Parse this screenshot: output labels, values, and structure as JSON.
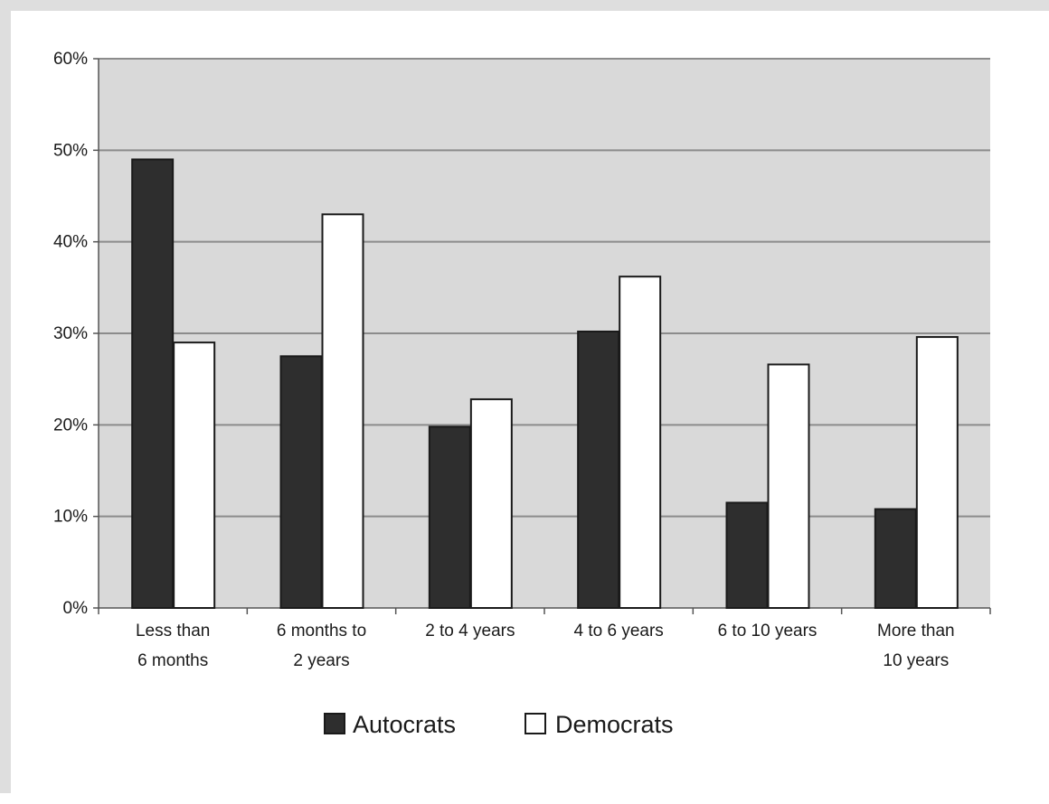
{
  "chart_data": {
    "type": "bar",
    "categories": [
      [
        "Less than",
        "6 months"
      ],
      [
        "6 months to",
        "2 years"
      ],
      [
        "2 to 4 years"
      ],
      [
        "4 to 6 years"
      ],
      [
        "6 to 10 years"
      ],
      [
        "More than",
        "10 years"
      ]
    ],
    "series": [
      {
        "name": "Autocrats",
        "values": [
          49,
          27.5,
          19.8,
          30.2,
          11.5,
          10.8
        ],
        "color": "#2e2e2e"
      },
      {
        "name": "Democrats",
        "values": [
          29,
          43,
          22.8,
          36.2,
          26.6,
          29.6
        ],
        "color": "#ffffff"
      }
    ],
    "ylim": [
      0,
      60
    ],
    "yticks": [
      0,
      10,
      20,
      30,
      40,
      50,
      60
    ],
    "ytick_labels": [
      "0%",
      "10%",
      "20%",
      "30%",
      "40%",
      "50%",
      "60%"
    ],
    "grid": true,
    "legend_position": "bottom-center",
    "colors": {
      "plot_background": "#d9d9d9",
      "gridline": "#8c8c8c",
      "bar_outline": "#1a1a1a"
    },
    "title": "",
    "xlabel": "",
    "ylabel": ""
  }
}
